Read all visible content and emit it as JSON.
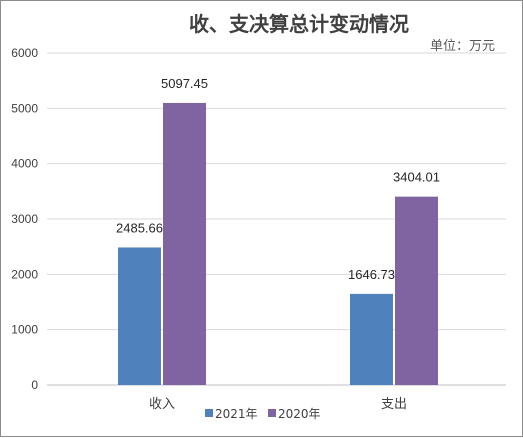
{
  "chart_data": {
    "type": "bar",
    "title": "收、支决算总计变动情况",
    "unit_label": "单位：万元",
    "categories": [
      "收入",
      "支出"
    ],
    "series": [
      {
        "name": "2021年",
        "values": [
          2485.66,
          1646.73
        ],
        "labels": [
          "2485.66",
          "1646.73"
        ],
        "color": "#4f81bd"
      },
      {
        "name": "2020年",
        "values": [
          5097.45,
          3404.01
        ],
        "labels": [
          "5097.45",
          "3404.01"
        ],
        "color": "#8064a2"
      }
    ],
    "ylim": [
      0,
      6000
    ],
    "yticks": [
      "0",
      "1000",
      "2000",
      "3000",
      "4000",
      "5000",
      "6000"
    ],
    "grid": true,
    "legend_position": "bottom"
  }
}
